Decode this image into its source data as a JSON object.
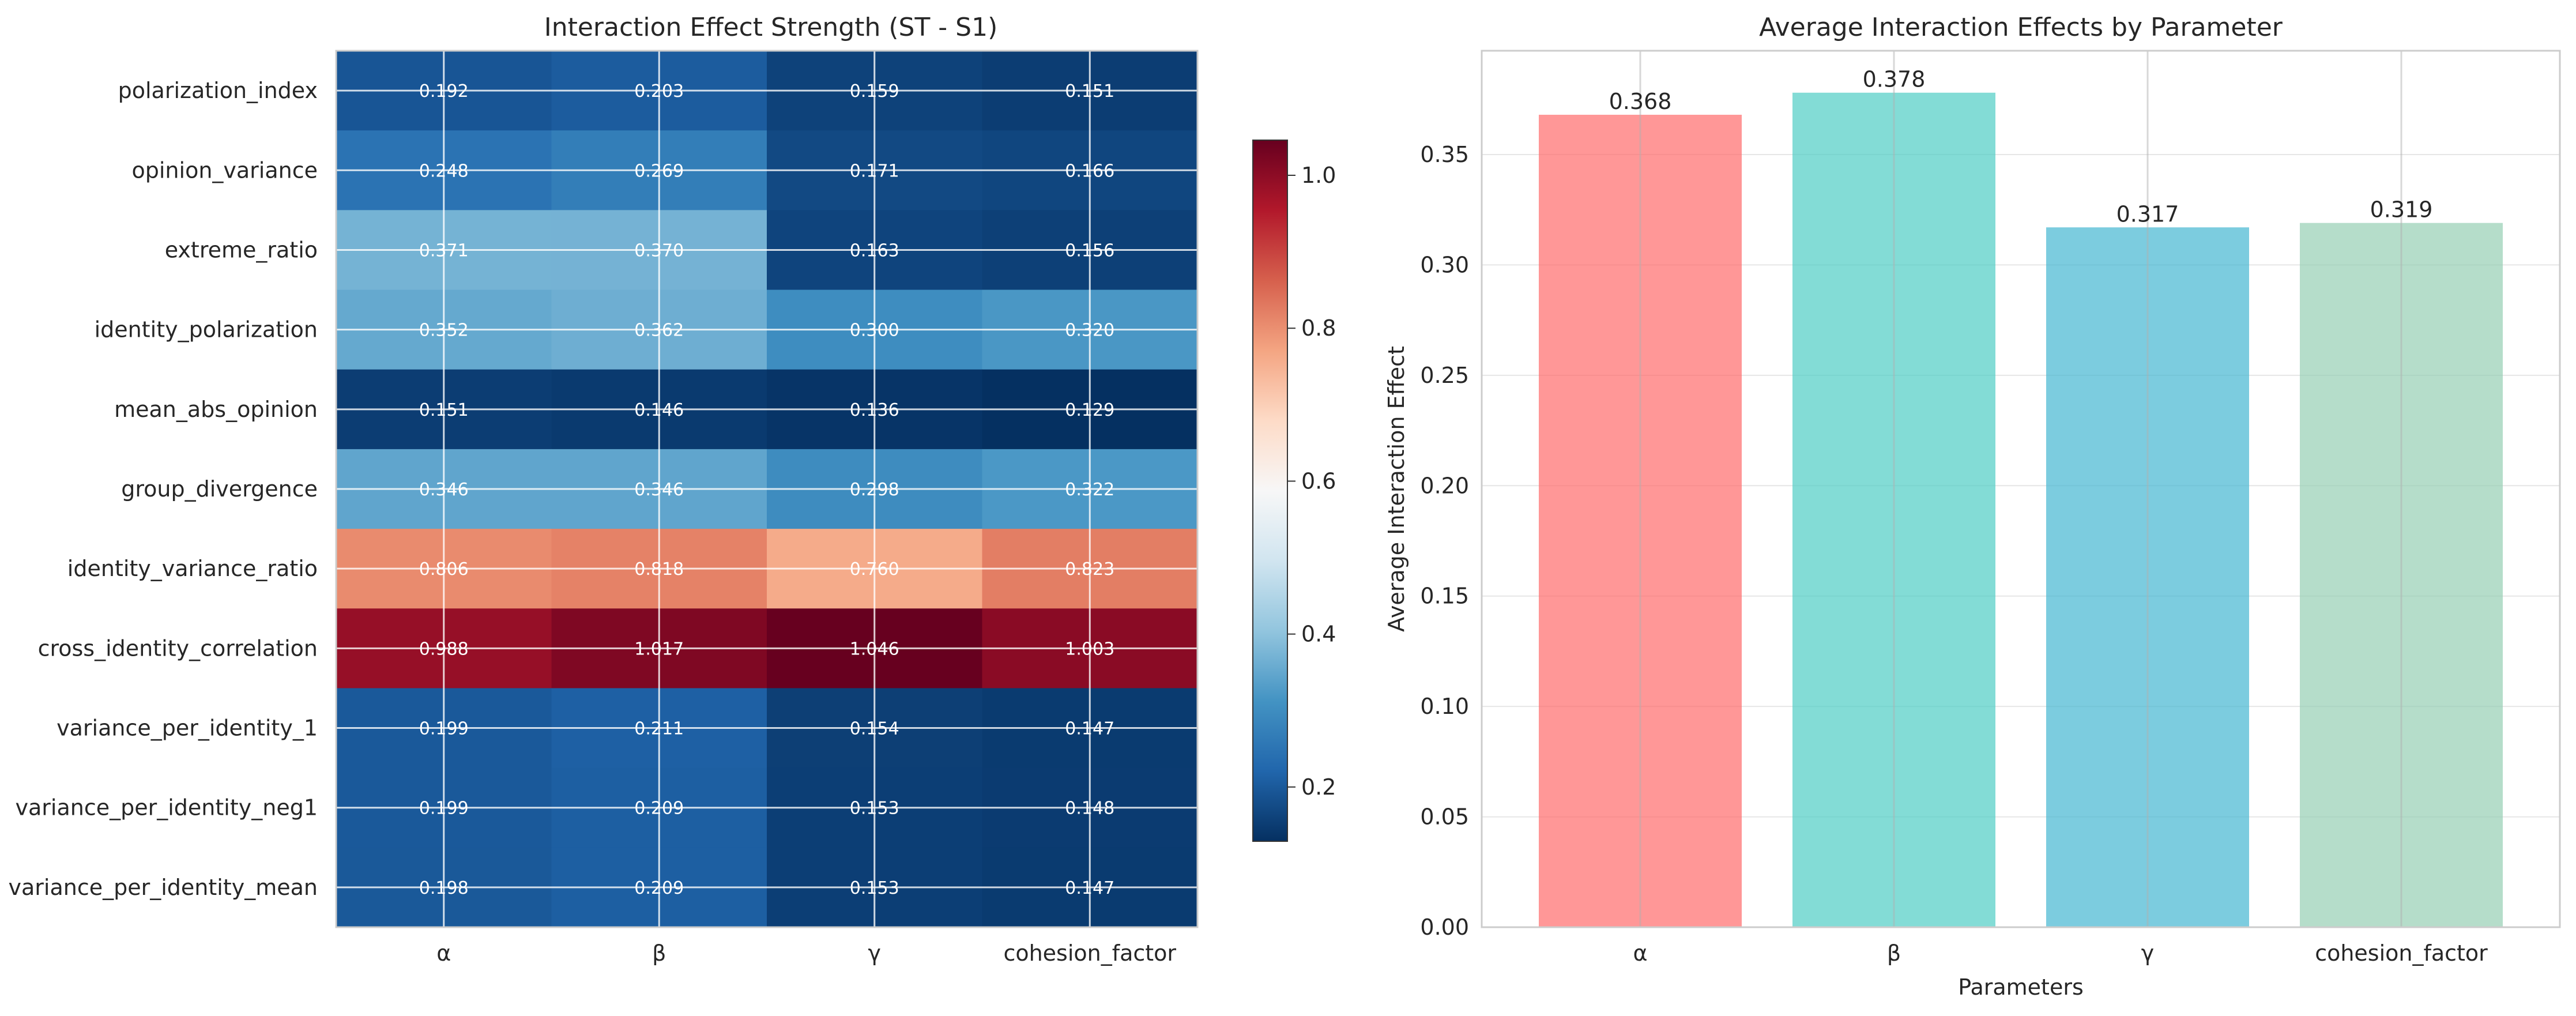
{
  "chart_data": [
    {
      "type": "heatmap",
      "title": "Interaction Effect Strength (ST - S1)",
      "x_categories": [
        "α",
        "β",
        "γ",
        "cohesion_factor"
      ],
      "y_categories": [
        "polarization_index",
        "opinion_variance",
        "extreme_ratio",
        "identity_polarization",
        "mean_abs_opinion",
        "group_divergence",
        "identity_variance_ratio",
        "cross_identity_correlation",
        "variance_per_identity_1",
        "variance_per_identity_neg1",
        "variance_per_identity_mean"
      ],
      "values": [
        [
          0.192,
          0.203,
          0.159,
          0.151
        ],
        [
          0.248,
          0.269,
          0.171,
          0.166
        ],
        [
          0.371,
          0.37,
          0.163,
          0.156
        ],
        [
          0.352,
          0.362,
          0.3,
          0.32
        ],
        [
          0.151,
          0.146,
          0.136,
          0.129
        ],
        [
          0.346,
          0.346,
          0.298,
          0.322
        ],
        [
          0.806,
          0.818,
          0.76,
          0.823
        ],
        [
          0.988,
          1.017,
          1.046,
          1.003
        ],
        [
          0.199,
          0.211,
          0.154,
          0.147
        ],
        [
          0.199,
          0.209,
          0.153,
          0.148
        ],
        [
          0.198,
          0.209,
          0.153,
          0.147
        ]
      ],
      "colormap": "RdBu_r",
      "vmin": 0.129,
      "vmax": 1.046,
      "colorbar_ticks": [
        "0.2",
        "0.4",
        "0.6",
        "0.8",
        "1.0"
      ],
      "grid": true
    },
    {
      "type": "bar",
      "title": "Average Interaction Effects by Parameter",
      "categories": [
        "α",
        "β",
        "γ",
        "cohesion_factor"
      ],
      "values": [
        0.368,
        0.378,
        0.317,
        0.319
      ],
      "value_labels": [
        "0.368",
        "0.378",
        "0.317",
        "0.319"
      ],
      "colors": [
        "#FF6B6B",
        "#4ECDC4",
        "#45B7D1",
        "#96CEB4"
      ],
      "xlabel": "Parameters",
      "ylabel": "Average Interaction Effect",
      "ylim": [
        0,
        0.397
      ],
      "yticks": [
        "0.00",
        "0.05",
        "0.10",
        "0.15",
        "0.20",
        "0.25",
        "0.30",
        "0.35"
      ],
      "grid": true
    }
  ]
}
